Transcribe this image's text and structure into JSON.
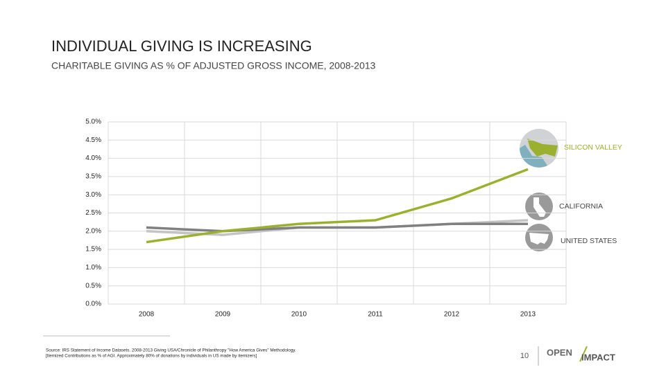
{
  "chart_data": {
    "type": "line",
    "title": "INDIVIDUAL GIVING IS INCREASING",
    "subtitle": "CHARITABLE GIVING AS % OF ADJUSTED GROSS INCOME, 2008-2013",
    "categories": [
      "2008",
      "2009",
      "2010",
      "2011",
      "2012",
      "2013"
    ],
    "series": [
      {
        "name": "SILICON VALLEY",
        "color": "#9bb02e",
        "values": [
          1.7,
          2.0,
          2.2,
          2.3,
          2.9,
          3.7
        ]
      },
      {
        "name": "CALIFORNIA",
        "color": "#808080",
        "values": [
          2.1,
          2.0,
          2.1,
          2.1,
          2.2,
          2.2
        ]
      },
      {
        "name": "UNITED STATES",
        "color": "#c4c4c4",
        "values": [
          2.0,
          1.9,
          2.1,
          2.1,
          2.2,
          2.3
        ]
      }
    ],
    "ylim": [
      0,
      5
    ],
    "yticks": [
      {
        "value": 0,
        "label": "0.0%"
      },
      {
        "value": 0.5,
        "label": "0.5%"
      },
      {
        "value": 1,
        "label": "1.0%"
      },
      {
        "value": 1.5,
        "label": "1.5%"
      },
      {
        "value": 2,
        "label": "2.0%"
      },
      {
        "value": 2.5,
        "label": "2.5%"
      },
      {
        "value": 3,
        "label": "3.0%"
      },
      {
        "value": 3.5,
        "label": "3.5%"
      },
      {
        "value": 4,
        "label": "4.0%"
      },
      {
        "value": 4.5,
        "label": "4.5%"
      },
      {
        "value": 5,
        "label": "5.0%"
      }
    ],
    "grid": true
  },
  "footer": {
    "source": [
      "Source: IRS Statement of Income Datasets. 2008-2013 Giving USA/Chronicle of Philanthropy \"How America Gives\" Methodology.",
      "[Itemized Contributions as % of AGI. Approximately 80% of donations by individuals in US made by itemizers]"
    ],
    "page_number": "10",
    "logo": [
      "OPEN",
      "IMPACT"
    ]
  }
}
